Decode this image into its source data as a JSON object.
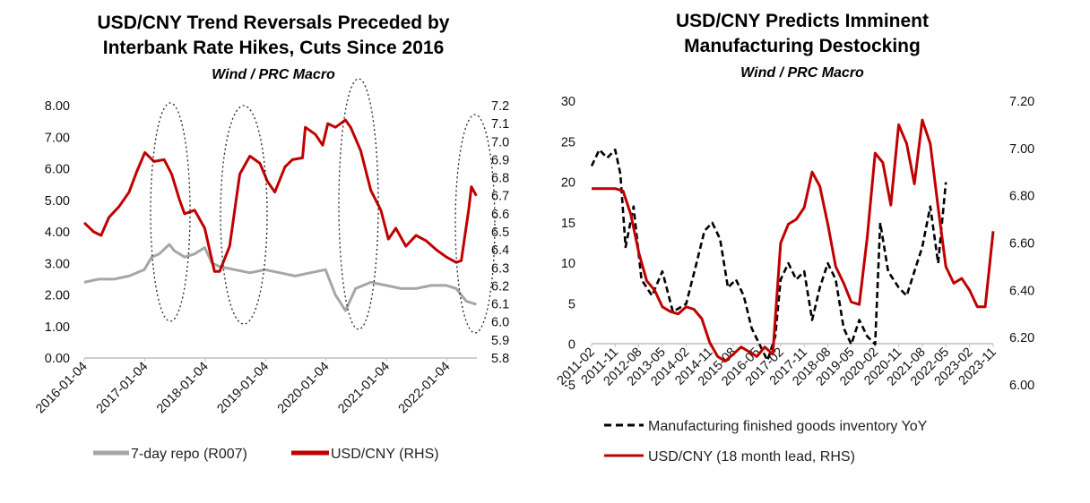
{
  "chart_data": [
    {
      "type": "line",
      "title_lines": [
        "USD/CNY Trend Reversals Preceded by",
        "Interbank Rate Hikes, Cuts Since 2016"
      ],
      "subtitle": "Wind / PRC Macro",
      "x_type": "date",
      "xlim": [
        "2016-01-04",
        "2022-07-04"
      ],
      "x_ticks": [
        "2016-01-04",
        "2017-01-04",
        "2018-01-04",
        "2019-01-04",
        "2020-01-04",
        "2021-01-04",
        "2022-01-04"
      ],
      "y_left": {
        "lim": [
          0,
          8
        ],
        "ticks": [
          "0.00",
          "1.00",
          "2.00",
          "3.00",
          "4.00",
          "5.00",
          "6.00",
          "7.00",
          "8.00"
        ]
      },
      "y_right": {
        "lim": [
          5.8,
          7.2
        ],
        "ticks": [
          "5.8",
          "5.9",
          "6.0",
          "6.1",
          "6.2",
          "6.3",
          "6.4",
          "6.5",
          "6.6",
          "6.7",
          "6.8",
          "6.9",
          "7.0",
          "7.1",
          "7.2"
        ]
      },
      "grid": false,
      "legend_position": "bottom",
      "series": [
        {
          "name": "7-day repo (R007)",
          "axis": "left",
          "color": "#a6a6a6",
          "style": "solid",
          "x": [
            "2016-01-04",
            "2016-04-01",
            "2016-07-01",
            "2016-10-01",
            "2017-01-01",
            "2017-02-15",
            "2017-04-01",
            "2017-06-01",
            "2017-07-01",
            "2017-09-01",
            "2017-11-01",
            "2018-01-01",
            "2018-02-15",
            "2018-04-01",
            "2018-07-01",
            "2018-10-01",
            "2019-01-01",
            "2019-04-01",
            "2019-07-01",
            "2019-10-01",
            "2020-01-01",
            "2020-03-01",
            "2020-05-01",
            "2020-07-01",
            "2020-10-01",
            "2021-01-01",
            "2021-04-01",
            "2021-07-01",
            "2021-10-01",
            "2022-01-01",
            "2022-03-01",
            "2022-05-01",
            "2022-07-01"
          ],
          "values": [
            2.4,
            2.5,
            2.5,
            2.6,
            2.8,
            3.2,
            3.3,
            3.6,
            3.4,
            3.2,
            3.3,
            3.5,
            3.0,
            2.9,
            2.8,
            2.7,
            2.8,
            2.7,
            2.6,
            2.7,
            2.8,
            2.0,
            1.5,
            2.2,
            2.4,
            2.3,
            2.2,
            2.2,
            2.3,
            2.3,
            2.2,
            1.8,
            1.7
          ]
        },
        {
          "name": "USD/CNY (RHS)",
          "axis": "right",
          "color": "#c00000",
          "style": "solid",
          "x": [
            "2016-01-04",
            "2016-03-01",
            "2016-04-15",
            "2016-06-01",
            "2016-08-01",
            "2016-10-01",
            "2016-11-15",
            "2017-01-04",
            "2017-03-01",
            "2017-05-01",
            "2017-06-15",
            "2017-08-01",
            "2017-09-01",
            "2017-11-01",
            "2018-01-01",
            "2018-03-01",
            "2018-04-01",
            "2018-06-01",
            "2018-08-01",
            "2018-10-01",
            "2018-12-01",
            "2019-01-15",
            "2019-03-01",
            "2019-05-01",
            "2019-06-15",
            "2019-08-15",
            "2019-09-01",
            "2019-11-01",
            "2019-12-15",
            "2020-01-15",
            "2020-03-01",
            "2020-05-01",
            "2020-06-01",
            "2020-08-01",
            "2020-10-01",
            "2020-12-01",
            "2021-01-15",
            "2021-03-01",
            "2021-05-01",
            "2021-07-01",
            "2021-09-01",
            "2021-11-01",
            "2022-01-01",
            "2022-03-01",
            "2022-04-01",
            "2022-05-15",
            "2022-06-01",
            "2022-07-01"
          ],
          "values": [
            6.55,
            6.5,
            6.48,
            6.58,
            6.64,
            6.72,
            6.83,
            6.94,
            6.89,
            6.9,
            6.82,
            6.68,
            6.6,
            6.62,
            6.52,
            6.28,
            6.28,
            6.42,
            6.82,
            6.92,
            6.88,
            6.78,
            6.72,
            6.86,
            6.9,
            6.91,
            7.08,
            7.04,
            6.98,
            7.1,
            7.08,
            7.12,
            7.08,
            6.95,
            6.73,
            6.62,
            6.46,
            6.52,
            6.42,
            6.48,
            6.45,
            6.4,
            6.36,
            6.33,
            6.34,
            6.62,
            6.75,
            6.7
          ]
        }
      ],
      "highlight_ellipses_count": 4
    },
    {
      "type": "line",
      "title_lines": [
        "USD/CNY Predicts Imminent",
        "Manufacturing Destocking"
      ],
      "subtitle": "Wind / PRC Macro",
      "x_type": "month",
      "xlim": [
        "2011-02",
        "2023-11"
      ],
      "x_ticks": [
        "2011-02",
        "2011-11",
        "2012-08",
        "2013-05",
        "2014-02",
        "2014-11",
        "2015-08",
        "2016-05",
        "2017-02",
        "2017-11",
        "2018-08",
        "2019-05",
        "2020-02",
        "2020-11",
        "2021-08",
        "2022-05",
        "2023-02",
        "2023-11"
      ],
      "y_left": {
        "lim": [
          -5,
          30
        ],
        "ticks": [
          "-5",
          "0",
          "5",
          "10",
          "15",
          "20",
          "25",
          "30"
        ]
      },
      "y_right": {
        "lim": [
          6.0,
          7.2
        ],
        "ticks": [
          "6.00",
          "6.20",
          "6.40",
          "6.60",
          "6.80",
          "7.00",
          "7.20"
        ]
      },
      "grid": false,
      "legend_position": "bottom",
      "series": [
        {
          "name": "Manufacturing finished goods inventory YoY",
          "axis": "left",
          "color": "#000000",
          "style": "dashed",
          "x": [
            "2011-02",
            "2011-05",
            "2011-08",
            "2011-11",
            "2012-01",
            "2012-03",
            "2012-06",
            "2012-09",
            "2013-01",
            "2013-05",
            "2013-09",
            "2014-02",
            "2014-06",
            "2014-09",
            "2014-12",
            "2015-03",
            "2015-06",
            "2015-09",
            "2015-12",
            "2016-03",
            "2016-06",
            "2016-09",
            "2016-12",
            "2017-02",
            "2017-05",
            "2017-08",
            "2017-11",
            "2018-02",
            "2018-05",
            "2018-08",
            "2018-11",
            "2019-02",
            "2019-05",
            "2019-08",
            "2019-11",
            "2020-02",
            "2020-04",
            "2020-07",
            "2020-11",
            "2021-02",
            "2021-05",
            "2021-08",
            "2021-11",
            "2022-02",
            "2022-05"
          ],
          "values": [
            22,
            24,
            23,
            24,
            21,
            12,
            17,
            8,
            6,
            9,
            4,
            5,
            10,
            14,
            15,
            13,
            7,
            8,
            6,
            2,
            0,
            -2,
            1,
            8,
            10,
            8,
            9,
            3,
            7,
            10,
            8,
            2,
            0,
            3,
            1,
            0,
            15,
            9,
            7,
            6,
            9,
            12,
            17,
            10,
            20
          ]
        },
        {
          "name": "USD/CNY (18 month lead, RHS)",
          "axis": "right",
          "color": "#c00000",
          "style": "solid",
          "x": [
            "2011-02",
            "2011-05",
            "2011-08",
            "2011-11",
            "2012-02",
            "2012-05",
            "2012-08",
            "2012-11",
            "2013-02",
            "2013-05",
            "2013-08",
            "2013-11",
            "2014-02",
            "2014-05",
            "2014-08",
            "2014-11",
            "2015-02",
            "2015-05",
            "2015-08",
            "2015-11",
            "2016-02",
            "2016-05",
            "2016-08",
            "2016-11",
            "2017-02",
            "2017-05",
            "2017-08",
            "2017-11",
            "2018-02",
            "2018-05",
            "2018-08",
            "2018-11",
            "2019-02",
            "2019-05",
            "2019-08",
            "2019-11",
            "2020-02",
            "2020-05",
            "2020-08",
            "2020-11",
            "2021-02",
            "2021-05",
            "2021-08",
            "2021-11",
            "2022-02",
            "2022-05",
            "2022-08",
            "2022-11",
            "2023-02",
            "2023-05",
            "2023-08",
            "2023-11"
          ],
          "values": [
            6.83,
            6.83,
            6.83,
            6.83,
            6.82,
            6.72,
            6.56,
            6.44,
            6.4,
            6.33,
            6.31,
            6.3,
            6.33,
            6.32,
            6.28,
            6.18,
            6.12,
            6.1,
            6.13,
            6.16,
            6.14,
            6.12,
            6.16,
            6.13,
            6.6,
            6.68,
            6.7,
            6.75,
            6.9,
            6.84,
            6.68,
            6.5,
            6.43,
            6.35,
            6.34,
            6.62,
            6.98,
            6.94,
            6.76,
            7.1,
            7.02,
            6.85,
            7.12,
            7.02,
            6.75,
            6.5,
            6.43,
            6.45,
            6.4,
            6.33,
            6.33,
            6.65
          ]
        }
      ]
    }
  ]
}
